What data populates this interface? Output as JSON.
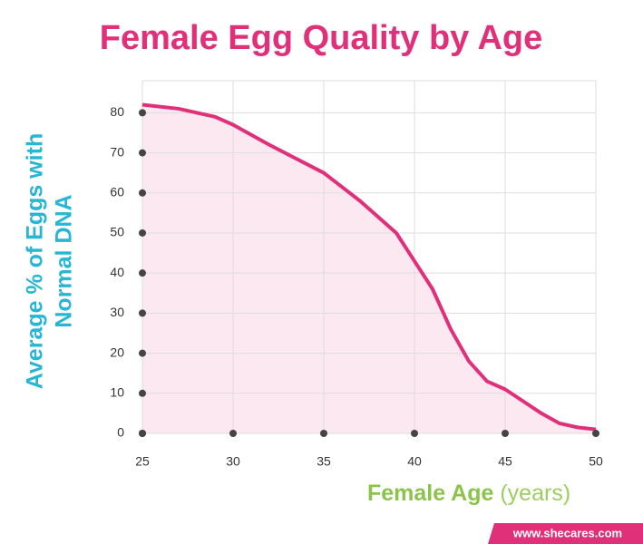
{
  "chart_data": {
    "type": "area",
    "title": "Female Egg Quality by Age",
    "x_label": "Female Age",
    "x_label_unit": "(years)",
    "y_label": [
      "Average % of Eggs with",
      "Normal DNA"
    ],
    "x": [
      25,
      27,
      29,
      30,
      32,
      35,
      37,
      39,
      40,
      41,
      42,
      43,
      44,
      45,
      46,
      47,
      48,
      49,
      50
    ],
    "values": [
      82,
      81,
      79,
      77,
      72,
      65,
      58,
      50,
      43,
      36,
      26,
      18,
      13,
      11,
      8,
      5,
      2.5,
      1.5,
      1
    ],
    "color": "#e0307a",
    "fill": "#fce8f1",
    "xlim": [
      25,
      50
    ],
    "xticks": [
      25,
      30,
      35,
      40,
      45,
      50
    ],
    "ylim": [
      0,
      88
    ],
    "yticks": [
      0,
      10,
      20,
      30,
      40,
      50,
      60,
      70,
      80
    ],
    "grid": true,
    "source": "www.shecares.com"
  }
}
